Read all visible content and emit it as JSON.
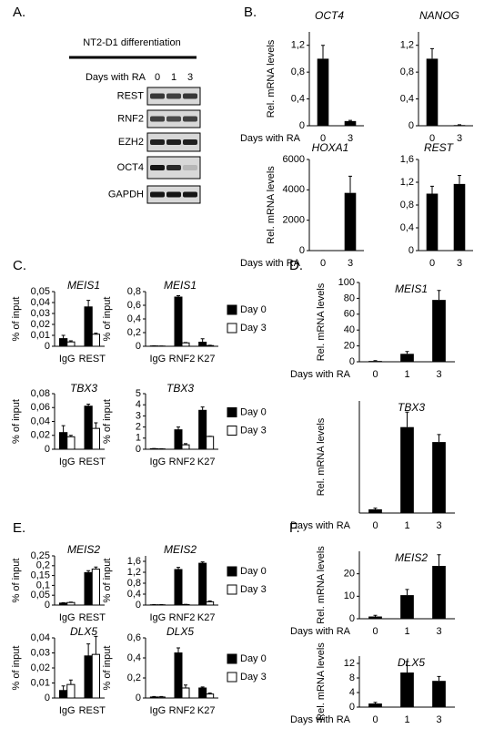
{
  "panel_labels": [
    "A.",
    "B.",
    "C.",
    "D.",
    "E.",
    "F."
  ],
  "blot": {
    "title": "NT2-D1 differentiation",
    "row_label": "Days with RA",
    "days": [
      "0",
      "1",
      "3"
    ],
    "proteins": [
      "REST",
      "RNF2",
      "EZH2",
      "OCT4",
      "GAPDH"
    ]
  },
  "chart_data": [
    {
      "type": "bar",
      "title": "OCT4",
      "ylabel": "Rel. mRNA levels",
      "xlabel": "Days with RA",
      "categories": [
        "0",
        "3"
      ],
      "values": [
        1.0,
        0.07
      ],
      "errors": [
        0.2,
        0.01
      ],
      "color": "#000000",
      "ylim": [
        0,
        1.4
      ],
      "yticks": [
        0,
        {
          "value": 0.4,
          "label": "0,4"
        },
        {
          "value": 0.8,
          "label": "0,8"
        },
        {
          "value": 1.2,
          "label": "1,2"
        }
      ]
    },
    {
      "type": "bar",
      "title": "NANOG",
      "categories": [
        "0",
        "3"
      ],
      "values": [
        1.0,
        0.01
      ],
      "errors": [
        0.15,
        0.005
      ],
      "color": "#000000",
      "ylim": [
        0,
        1.4
      ],
      "yticks": [
        0,
        {
          "value": 0.4,
          "label": "0,4"
        },
        {
          "value": 0.8,
          "label": "0,8"
        },
        {
          "value": 1.2,
          "label": "1,2"
        }
      ]
    },
    {
      "type": "bar",
      "title": "HOXA1",
      "ylabel": "Rel. mRNA levels",
      "xlabel": "Days with RA",
      "categories": [
        "0",
        "3"
      ],
      "values": [
        1,
        3800
      ],
      "errors": [
        0,
        1100
      ],
      "color": "#000000",
      "ylim": [
        0,
        6000
      ],
      "yticks": [
        0,
        2000,
        4000,
        6000
      ]
    },
    {
      "type": "bar",
      "title": "REST",
      "categories": [
        "0",
        "3"
      ],
      "values": [
        1.0,
        1.17
      ],
      "errors": [
        0.13,
        0.15
      ],
      "color": "#000000",
      "ylim": [
        0,
        1.6
      ],
      "yticks": [
        0,
        {
          "value": 0.4,
          "label": "0,4"
        },
        {
          "value": 0.8,
          "label": "0,8"
        },
        {
          "value": 1.2,
          "label": "1,2"
        },
        {
          "value": 1.6,
          "label": "1,6"
        }
      ]
    },
    {
      "type": "bar",
      "title": "MEIS1",
      "ylabel": "% of input",
      "categories": [
        "IgG",
        "REST"
      ],
      "series": [
        {
          "color": "#000000",
          "values": [
            0.007,
            0.036
          ],
          "errors": [
            0.003,
            0.006
          ]
        },
        {
          "color": "#ffffff",
          "values": [
            0.004,
            0.011
          ],
          "errors": [
            0.001,
            0.001
          ]
        }
      ],
      "ylim": [
        0,
        0.05
      ],
      "yticks": [
        0,
        {
          "value": 0.01,
          "label": "0,01"
        },
        {
          "value": 0.02,
          "label": "0,02"
        },
        {
          "value": 0.03,
          "label": "0,03"
        },
        {
          "value": 0.04,
          "label": "0,04"
        },
        {
          "value": 0.05,
          "label": "0,05"
        }
      ]
    },
    {
      "type": "bar",
      "title": "MEIS1",
      "ylabel": "% of input",
      "categories": [
        "IgG",
        "RNF2",
        "K27"
      ],
      "series": [
        {
          "name": "Day 0",
          "color": "#000000",
          "values": [
            0.005,
            0.72,
            0.06
          ],
          "errors": [
            0.002,
            0.02,
            0.05
          ]
        },
        {
          "name": "Day 3",
          "color": "#ffffff",
          "values": [
            0.003,
            0.05,
            0.01
          ],
          "errors": [
            0.001,
            0.005,
            0.005
          ]
        }
      ],
      "ylim": [
        0,
        0.8
      ],
      "yticks": [
        0,
        {
          "value": 0.2,
          "label": "0,2"
        },
        {
          "value": 0.4,
          "label": "0,4"
        },
        {
          "value": 0.6,
          "label": "0,6"
        },
        {
          "value": 0.8,
          "label": "0,8"
        }
      ],
      "legend": "right"
    },
    {
      "type": "bar",
      "title": "TBX3",
      "ylabel": "% of input",
      "categories": [
        "IgG",
        "REST"
      ],
      "series": [
        {
          "color": "#000000",
          "values": [
            0.024,
            0.062
          ],
          "errors": [
            0.01,
            0.003
          ]
        },
        {
          "color": "#ffffff",
          "values": [
            0.018,
            0.03
          ],
          "errors": [
            0.002,
            0.008
          ]
        }
      ],
      "ylim": [
        0,
        0.08
      ],
      "yticks": [
        0,
        {
          "value": 0.02,
          "label": "0,02"
        },
        {
          "value": 0.04,
          "label": "0,04"
        },
        {
          "value": 0.06,
          "label": "0,06"
        },
        {
          "value": 0.08,
          "label": "0,08"
        }
      ]
    },
    {
      "type": "bar",
      "title": "TBX3",
      "ylabel": "% of input",
      "categories": [
        "IgG",
        "RNF2",
        "K27"
      ],
      "series": [
        {
          "name": "Day 0",
          "color": "#000000",
          "values": [
            0.05,
            1.75,
            3.5
          ],
          "errors": [
            0.01,
            0.25,
            0.3
          ]
        },
        {
          "name": "Day 3",
          "color": "#ffffff",
          "values": [
            0.03,
            0.4,
            1.15
          ],
          "errors": [
            0.01,
            0.1,
            0.02
          ]
        }
      ],
      "ylim": [
        0,
        5
      ],
      "yticks": [
        0,
        1,
        2,
        3,
        4,
        5
      ],
      "legend": "right"
    },
    {
      "type": "bar",
      "title": "MEIS1",
      "ylabel": "Rel. mRNA levels",
      "xlabel": "Days with RA",
      "categories": [
        "0",
        "1",
        "3"
      ],
      "values": [
        1,
        10,
        78
      ],
      "errors": [
        0.5,
        3,
        12
      ],
      "color": "#000000",
      "ylim": [
        0,
        100
      ],
      "yticks": [
        0,
        20,
        40,
        60,
        80,
        100
      ]
    },
    {
      "type": "bar",
      "title": "TBX3",
      "ylabel": "Rel. mRNA levels",
      "xlabel": "Days with RA",
      "categories": [
        "0",
        "1",
        "3"
      ],
      "values": [
        1,
        23,
        19
      ],
      "errors": [
        0.3,
        4,
        2
      ],
      "color": "#000000",
      "ylim": [
        0,
        30
      ]
    },
    {
      "type": "bar",
      "title": "MEIS2",
      "ylabel": "% of input",
      "categories": [
        "IgG",
        "REST"
      ],
      "series": [
        {
          "color": "#000000",
          "values": [
            0.01,
            0.165
          ],
          "errors": [
            0.002,
            0.01
          ]
        },
        {
          "color": "#ffffff",
          "values": [
            0.013,
            0.183
          ],
          "errors": [
            0.002,
            0.01
          ]
        }
      ],
      "ylim": [
        0,
        0.25
      ],
      "yticks": [
        0,
        {
          "value": 0.05,
          "label": "0,05"
        },
        {
          "value": 0.1,
          "label": "0,1"
        },
        {
          "value": 0.15,
          "label": "0,15"
        },
        {
          "value": 0.2,
          "label": "0,2"
        },
        {
          "value": 0.25,
          "label": "0,25"
        }
      ]
    },
    {
      "type": "bar",
      "title": "MEIS2",
      "ylabel": "% of input",
      "categories": [
        "IgG",
        "RNF2",
        "K27"
      ],
      "series": [
        {
          "name": "Day 0",
          "color": "#000000",
          "values": [
            0.01,
            1.3,
            1.53
          ],
          "errors": [
            0.005,
            0.08,
            0.05
          ]
        },
        {
          "name": "Day 3",
          "color": "#ffffff",
          "values": [
            0.01,
            0.02,
            0.12
          ],
          "errors": [
            0.005,
            0.005,
            0.03
          ]
        }
      ],
      "ylim": [
        0,
        1.8
      ],
      "yticks": [
        0,
        {
          "value": 0.4,
          "label": "0,4"
        },
        {
          "value": 0.8,
          "label": "0,8"
        },
        {
          "value": 1.2,
          "label": "1,2"
        },
        {
          "value": 1.6,
          "label": "1,6"
        }
      ],
      "legend": "right"
    },
    {
      "type": "bar",
      "title": "DLX5",
      "ylabel": "% of input",
      "categories": [
        "IgG",
        "REST"
      ],
      "series": [
        {
          "color": "#000000",
          "values": [
            0.005,
            0.028
          ],
          "errors": [
            0.003,
            0.008
          ]
        },
        {
          "color": "#ffffff",
          "values": [
            0.009,
            0.029
          ],
          "errors": [
            0.003,
            0.012
          ]
        }
      ],
      "ylim": [
        0,
        0.04
      ],
      "yticks": [
        0,
        {
          "value": 0.01,
          "label": "0,01"
        },
        {
          "value": 0.02,
          "label": "0,02"
        },
        {
          "value": 0.03,
          "label": "0,03"
        },
        {
          "value": 0.04,
          "label": "0,04"
        }
      ]
    },
    {
      "type": "bar",
      "title": "DLX5",
      "ylabel": "% of input",
      "categories": [
        "IgG",
        "RNF2",
        "K27"
      ],
      "series": [
        {
          "name": "Day 0",
          "color": "#000000",
          "values": [
            0.01,
            0.45,
            0.1
          ],
          "errors": [
            0.005,
            0.05,
            0.01
          ]
        },
        {
          "name": "Day 3",
          "color": "#ffffff",
          "values": [
            0.01,
            0.1,
            0.04
          ],
          "errors": [
            0.005,
            0.03,
            0.01
          ]
        }
      ],
      "ylim": [
        0,
        0.6
      ],
      "yticks": [
        0,
        {
          "value": 0.2,
          "label": "0,2"
        },
        {
          "value": 0.4,
          "label": "0,4"
        },
        {
          "value": 0.6,
          "label": "0,6"
        }
      ],
      "legend": "right"
    },
    {
      "type": "bar",
      "title": "MEIS2",
      "ylabel": "Rel. mRNA levels",
      "xlabel": "Days with RA",
      "categories": [
        "0",
        "1",
        "3"
      ],
      "values": [
        1,
        10.5,
        23.5
      ],
      "errors": [
        0.5,
        2.5,
        5
      ],
      "color": "#000000",
      "ylim": [
        0,
        30
      ],
      "yticks": [
        0,
        10,
        20
      ]
    },
    {
      "type": "bar",
      "title": "DLX5",
      "ylabel": "Rel. mRNA levels",
      "xlabel": "Days with RA",
      "categories": [
        "0",
        "1",
        "3"
      ],
      "values": [
        1,
        9.5,
        7.2
      ],
      "errors": [
        0.3,
        3,
        1.2
      ],
      "color": "#000000",
      "ylim": [
        0,
        14
      ],
      "yticks": [
        0,
        4,
        8,
        12
      ]
    }
  ]
}
